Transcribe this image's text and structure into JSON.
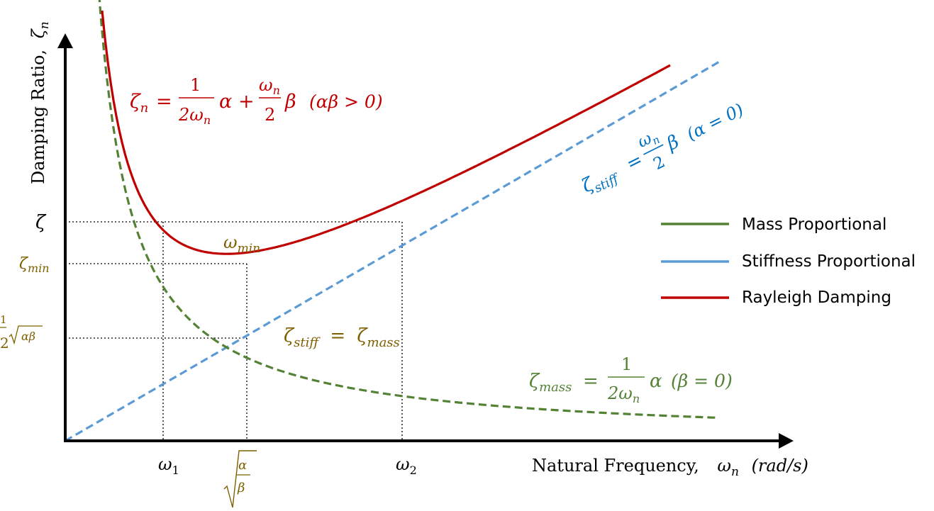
{
  "colors": {
    "mass": "#548235",
    "stiffness": "#5B9BD5",
    "rayleigh": "#C00000",
    "annotation": "#7F6000",
    "axis": "#000000",
    "stiffness_label": "#0070C0"
  },
  "axes": {
    "y_label": "Damping Ratio,",
    "y_label_symbol": "ζ",
    "y_label_subscript": "n",
    "x_label": "Natural Frequency,",
    "x_label_symbol": "ω",
    "x_label_subscript": "n",
    "x_label_unit": "(rad/s)"
  },
  "y_ticks": {
    "zeta": "ζ",
    "zeta_min": "ζ",
    "zeta_min_sub": "min",
    "sqrt_prefix": "2",
    "sqrt_content": "αβ"
  },
  "x_ticks": {
    "omega1": "ω",
    "omega1_sub": "1",
    "omega2": "ω",
    "omega2_sub": "2",
    "sqrt_num": "α",
    "sqrt_den": "β"
  },
  "annotations": {
    "omega_min": "ω",
    "omega_min_sub": "min",
    "intersection_lhs": "ζ",
    "intersection_lhs_sub": "stiff",
    "intersection_eq": "=",
    "intersection_rhs": "ζ",
    "intersection_rhs_sub": "mass"
  },
  "equations": {
    "rayleigh": {
      "lhs": "ζ",
      "lhs_sub": "n",
      "eq": "=",
      "frac1_num": "1",
      "frac1_den": "2ω",
      "frac1_den_sub": "n",
      "alpha": "α",
      "plus": "+",
      "frac2_num": "ω",
      "frac2_num_sub": "n",
      "frac2_den": "2",
      "beta": "β",
      "cond": "(αβ > 0)"
    },
    "stiffness": {
      "lhs": "ζ",
      "lhs_sub": "stiff",
      "eq": "=",
      "frac_num": "ω",
      "frac_num_sub": "n",
      "frac_den": "2",
      "beta": "β",
      "cond": "(α = 0)"
    },
    "mass": {
      "lhs": "ζ",
      "lhs_sub": "mass",
      "eq": "=",
      "frac_num": "1",
      "frac_den": "2ω",
      "frac_den_sub": "n",
      "alpha": "α",
      "cond": "(β = 0)"
    }
  },
  "legend": {
    "items": [
      {
        "label": "Mass Proportional",
        "color": "#548235"
      },
      {
        "label": "Stiffness Proportional",
        "color": "#5B9BD5"
      },
      {
        "label": "Rayleigh Damping",
        "color": "#C00000"
      }
    ]
  }
}
